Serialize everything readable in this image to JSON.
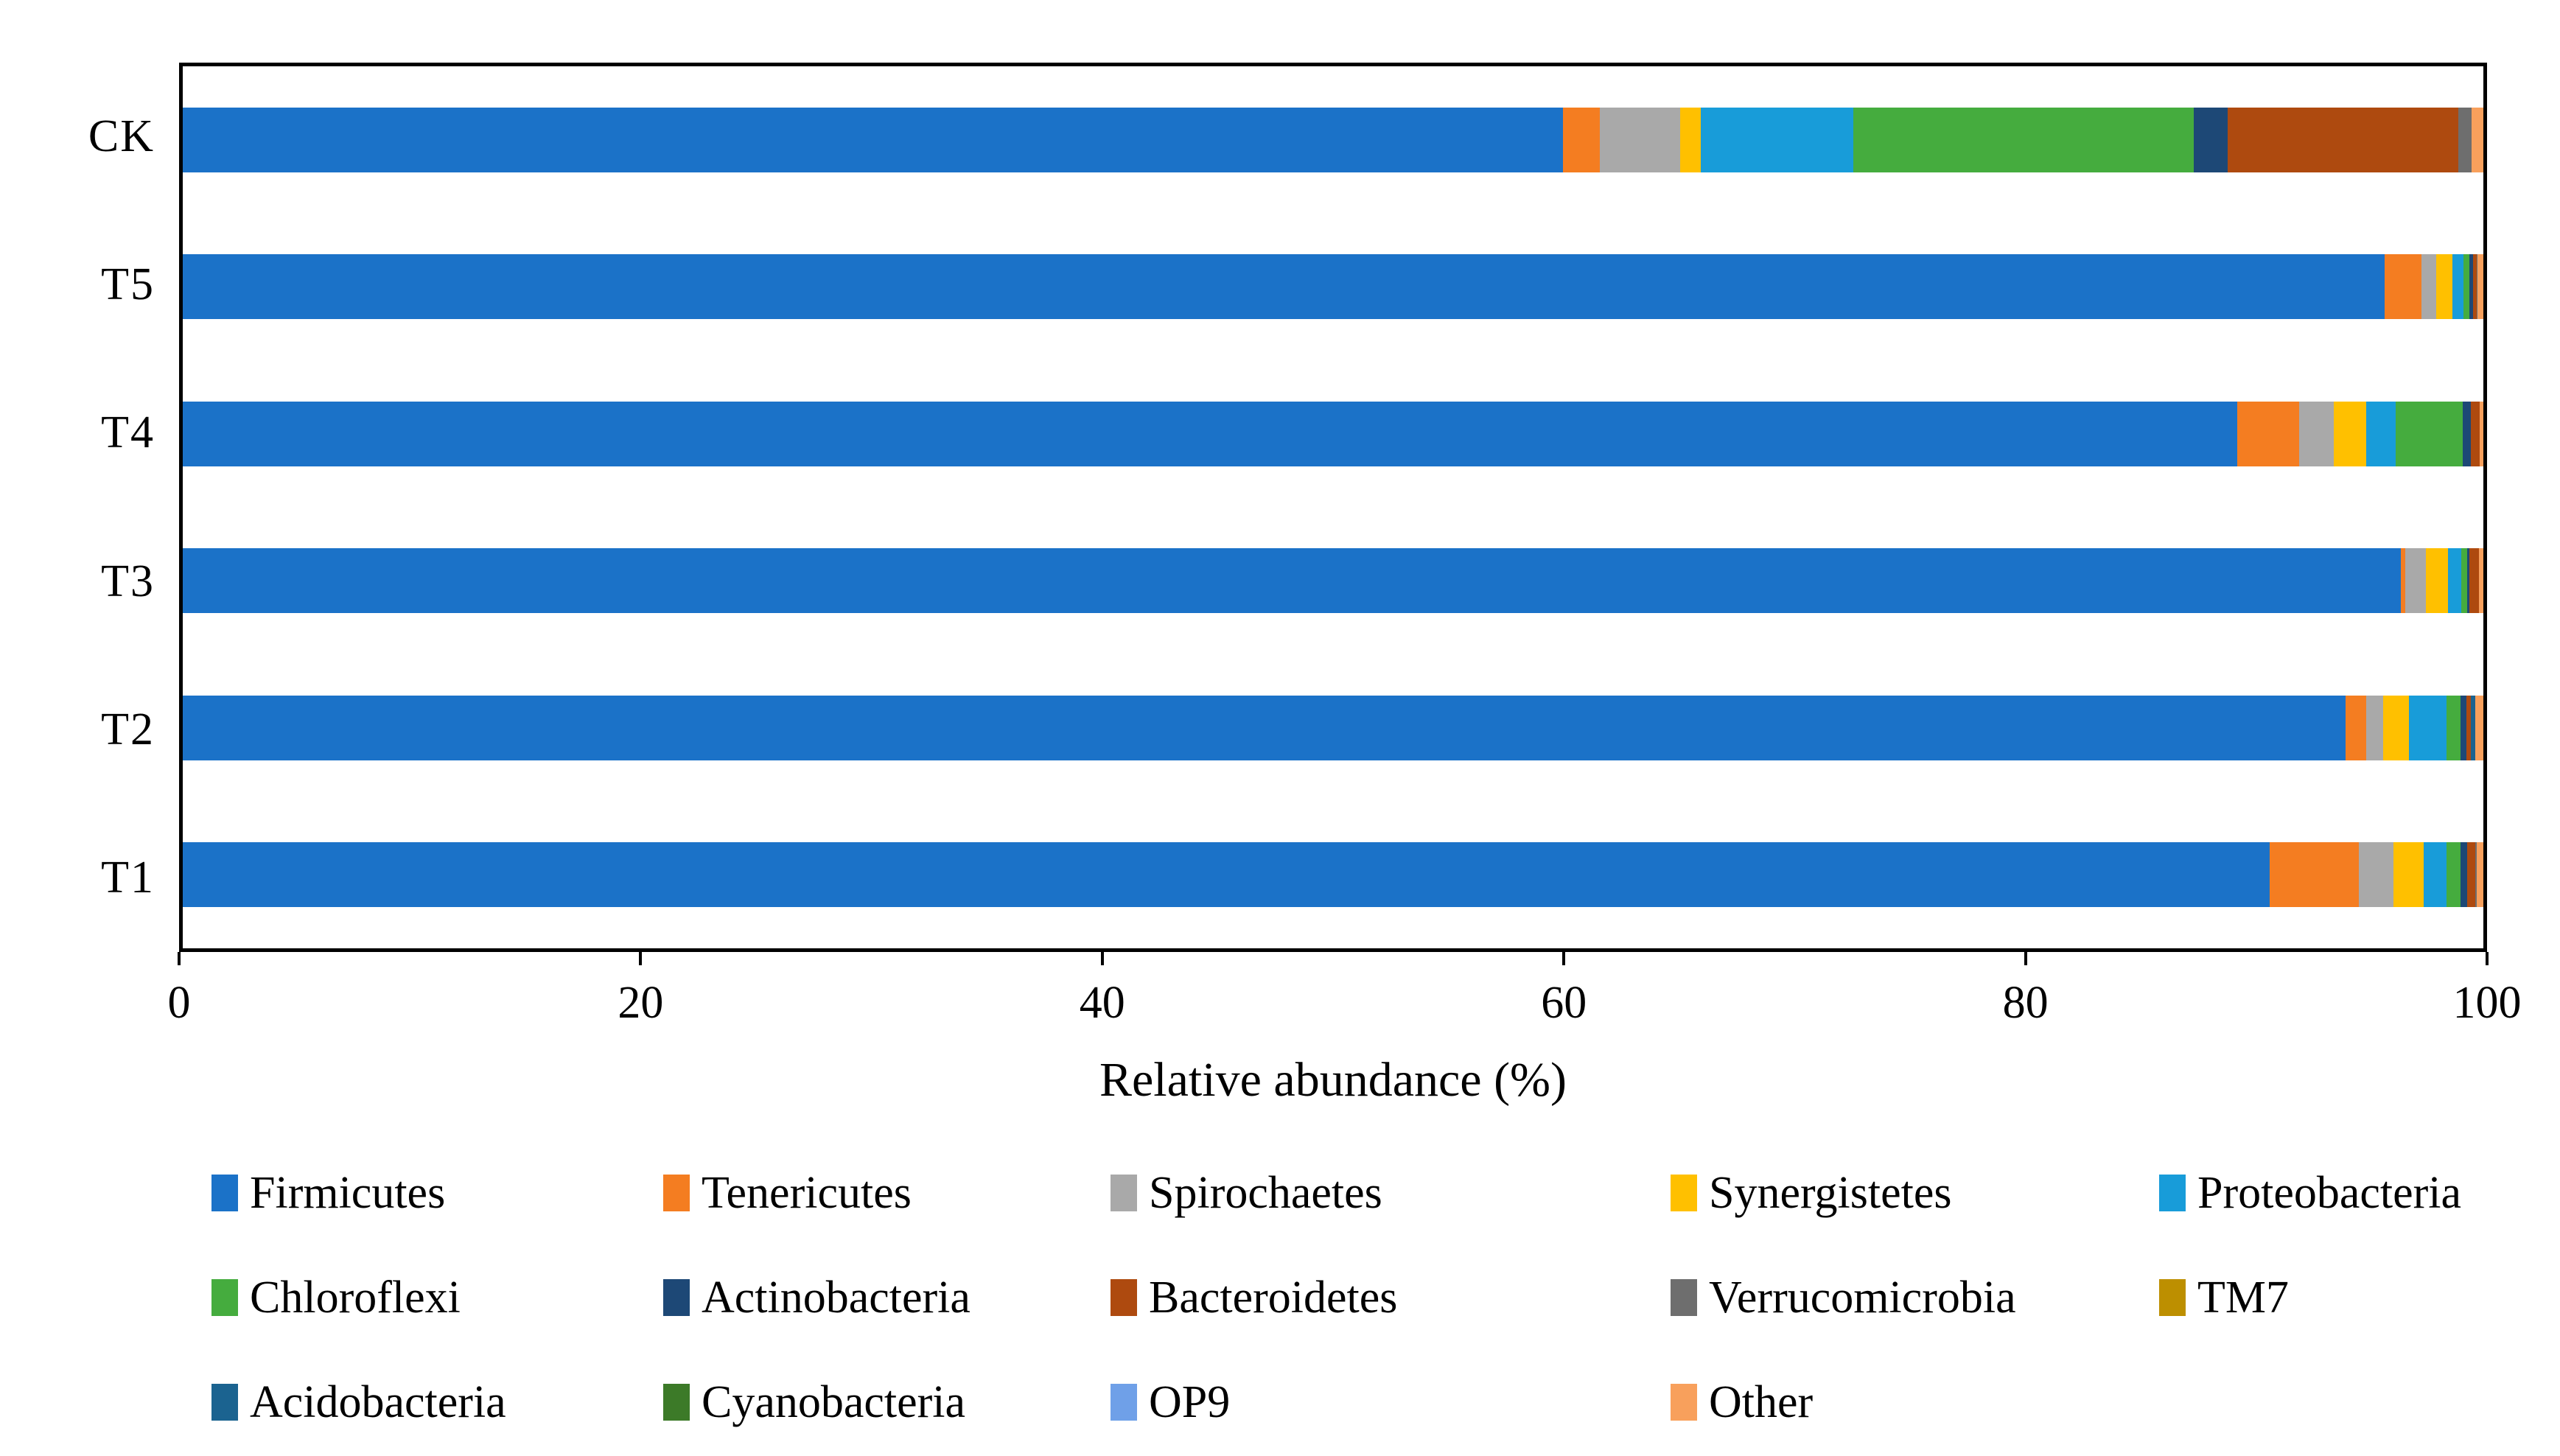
{
  "chart_data": {
    "type": "bar",
    "variant": "horizontal-stacked",
    "title": "",
    "xlabel": "Relative abundance (%)",
    "ylabel": "",
    "xlim": [
      0,
      100
    ],
    "xticks": [
      0,
      20,
      40,
      60,
      80,
      100
    ],
    "grid": false,
    "legend_position": "bottom",
    "legend_rows": [
      5,
      5,
      4
    ],
    "categories": [
      "CK",
      "T5",
      "T4",
      "T3",
      "T2",
      "T1"
    ],
    "series": [
      {
        "name": "Firmicutes",
        "color": "#1B72C8",
        "values": [
          60.0,
          95.7,
          89.3,
          96.4,
          94.0,
          90.7
        ]
      },
      {
        "name": "Tenericutes",
        "color": "#F47D21",
        "values": [
          1.6,
          1.6,
          2.7,
          0.2,
          0.9,
          3.9
        ]
      },
      {
        "name": "Spirochaetes",
        "color": "#A9A9A9",
        "values": [
          3.5,
          0.65,
          1.5,
          0.9,
          0.75,
          1.5
        ]
      },
      {
        "name": "Synergistetes",
        "color": "#FFC000",
        "values": [
          0.9,
          0.7,
          1.4,
          0.95,
          1.1,
          1.3
        ]
      },
      {
        "name": "Proteobacteria",
        "color": "#189CD9",
        "values": [
          6.6,
          0.5,
          1.3,
          0.6,
          1.65,
          1.0
        ]
      },
      {
        "name": "Chloroflexi",
        "color": "#45AC3E",
        "values": [
          14.8,
          0.25,
          2.9,
          0.25,
          0.6,
          0.6
        ]
      },
      {
        "name": "Actinobacteria",
        "color": "#1D4876",
        "values": [
          1.5,
          0.15,
          0.35,
          0.1,
          0.25,
          0.3
        ]
      },
      {
        "name": "Bacteroidetes",
        "color": "#AE4A0F",
        "values": [
          10.0,
          0.15,
          0.4,
          0.4,
          0.2,
          0.35
        ]
      },
      {
        "name": "Verrucomicrobia",
        "color": "#6E6E6E",
        "values": [
          0.6,
          0.05,
          0.0,
          0.0,
          0.0,
          0.05
        ]
      },
      {
        "name": "TM7",
        "color": "#BD8F00",
        "values": [
          0.0,
          0.0,
          0.0,
          0.0,
          0.0,
          0.0
        ]
      },
      {
        "name": "Acidobacteria",
        "color": "#1B6390",
        "values": [
          0.0,
          0.0,
          0.0,
          0.0,
          0.2,
          0.0
        ]
      },
      {
        "name": "Cyanobacteria",
        "color": "#3C7A28",
        "values": [
          0.0,
          0.0,
          0.0,
          0.0,
          0.0,
          0.0
        ]
      },
      {
        "name": "OP9",
        "color": "#6FA0E8",
        "values": [
          0.0,
          0.0,
          0.0,
          0.0,
          0.0,
          0.0
        ]
      },
      {
        "name": "Other",
        "color": "#F8A05C",
        "values": [
          0.5,
          0.25,
          0.15,
          0.2,
          0.35,
          0.3
        ]
      }
    ]
  }
}
